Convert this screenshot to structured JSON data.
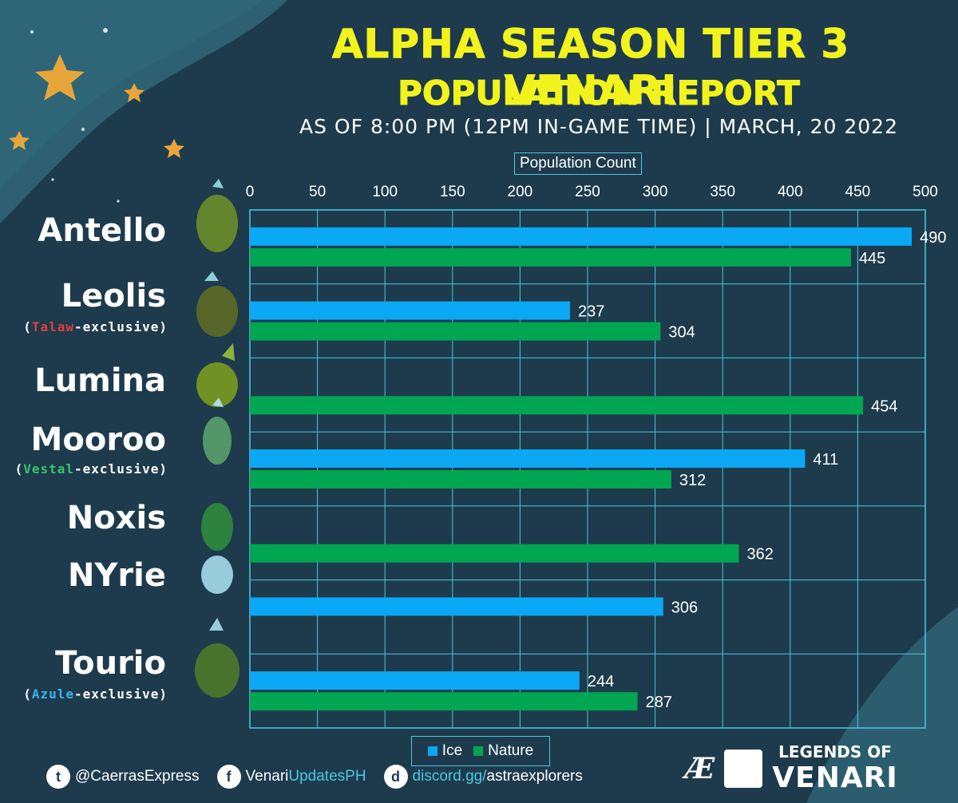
{
  "title": "ALPHA SEASON TIER 3 VENARI",
  "subtitle": "POPULATION REPORT",
  "as_of": "AS OF 8:00 PM (12PM IN-GAME TIME) | MARCH, 20 2022",
  "colors": {
    "ice": "#0aa8f5",
    "nature": "#00a651",
    "title": "#f2f21c",
    "grid": "#4cc9e0",
    "background": "#1d3b4c"
  },
  "chart_data": {
    "type": "bar",
    "orientation": "horizontal",
    "x_axis_title": "Population Count",
    "xlim": [
      0,
      500
    ],
    "x_ticks": [
      "0",
      "50",
      "100",
      "150",
      "200",
      "250",
      "300",
      "350",
      "400",
      "450",
      "500"
    ],
    "categories": [
      "Antello",
      "Leolis",
      "Lumina",
      "Mooroo",
      "Noxis",
      "NYrie",
      "Tourio"
    ],
    "category_notes": {
      "Leolis": {
        "open": "(",
        "highlight": "Talaw",
        "rest": "-exclusive)",
        "color": "red"
      },
      "Mooroo": {
        "open": "(",
        "highlight": "Vestal",
        "rest": "-exclusive)",
        "color": "green"
      },
      "Tourio": {
        "open": "(",
        "highlight": "Azule",
        "rest": "-exclusive)",
        "color": "blue"
      }
    },
    "series": [
      {
        "name": "Ice",
        "values": [
          490,
          237,
          null,
          411,
          null,
          306,
          244
        ]
      },
      {
        "name": "Nature",
        "values": [
          445,
          304,
          454,
          312,
          362,
          null,
          287
        ]
      }
    ],
    "legend_position": "bottom-center",
    "grid": true
  },
  "footer": {
    "twitter": "@CaerrasExpress",
    "facebook_main": "Venari",
    "facebook_accent": "UpdatesPH",
    "discord_main": "discord.gg/",
    "discord_accent": "astraexplorers"
  },
  "logos": {
    "ae": "Æ",
    "brand_top": "LEGENDS OF",
    "brand_bottom": "VENARI"
  },
  "icons": [
    "star-icon",
    "twitter-icon",
    "facebook-icon",
    "discord-icon"
  ]
}
